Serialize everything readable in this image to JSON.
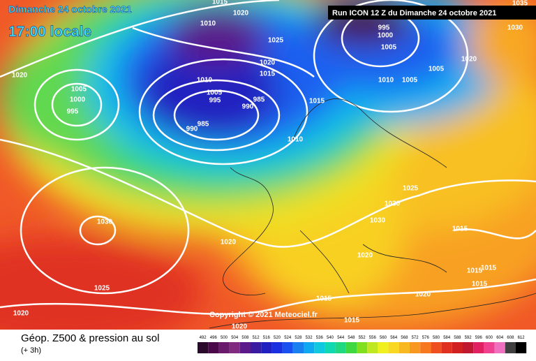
{
  "header": {
    "date": "Dimanche 24 octobre 2021",
    "time": "17:00 locale",
    "run": "Run ICON 12 Z du Dimanche 24 octobre 2021"
  },
  "copyright": "Copyright © 2021 Meteociel.fr",
  "isobar_labels": [
    "1035",
    "1015",
    "1020",
    "1010",
    "1025",
    "995",
    "1000",
    "1005",
    "1030",
    "1020",
    "1005",
    "1000",
    "995",
    "1020",
    "1015",
    "1010",
    "1005",
    "995",
    "990",
    "985",
    "985",
    "990",
    "1015",
    "1010",
    "1005",
    "1005",
    "1020",
    "1010",
    "1025",
    "1030",
    "1030",
    "1030",
    "1015",
    "1020",
    "1020",
    "1015",
    "1015",
    "1015",
    "1025",
    "1020",
    "1015",
    "1020",
    "1015",
    "1020"
  ],
  "footer": {
    "title": "Géop. Z500 & pression au sol",
    "subtitle": "(+ 3h)"
  },
  "legend": {
    "labels": [
      492,
      496,
      500,
      504,
      508,
      512,
      516,
      520,
      524,
      528,
      532,
      536,
      540,
      544,
      548,
      552,
      556,
      560,
      564,
      568,
      572,
      576,
      580,
      584,
      588,
      592,
      596,
      600,
      604,
      608,
      612
    ],
    "colors": [
      "#2a0a2a",
      "#4a0a4a",
      "#6a1a6a",
      "#802a80",
      "#5a1a8a",
      "#3a1aa0",
      "#2020c0",
      "#1a30e0",
      "#1a50f0",
      "#1a80f0",
      "#10a8f0",
      "#10c8e0",
      "#10d8b0",
      "#20d880",
      "#40d840",
      "#80e020",
      "#c0e820",
      "#f0f020",
      "#f8d820",
      "#f8b820",
      "#f89820",
      "#f87820",
      "#f05020",
      "#e03020",
      "#d02020",
      "#c01830",
      "#e02060",
      "#f04090",
      "#f070c0",
      "#404040",
      "#000000"
    ]
  }
}
